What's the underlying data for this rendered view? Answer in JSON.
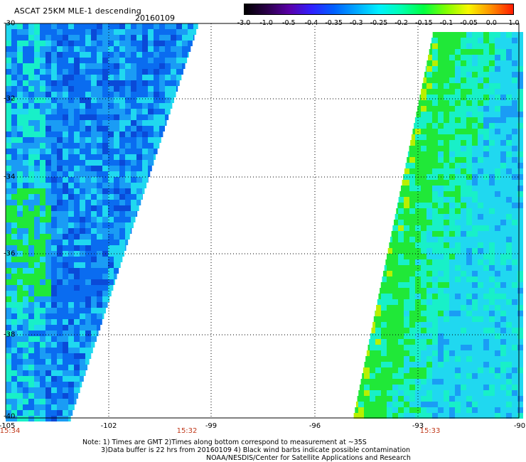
{
  "header": {
    "title": "ASCAT 25KM MLE-1 descending",
    "date": "20160109"
  },
  "colorbar": {
    "ticks": [
      "-3.0",
      "-1.0",
      "-0.5",
      "-0.4",
      "-0.35",
      "-0.3",
      "-0.25",
      "-0.2",
      "-0.15",
      "-0.1",
      "-0.05",
      "0.0",
      "1.0"
    ],
    "colors": [
      "#000000",
      "#2a0048",
      "#5a00a8",
      "#3020ff",
      "#0060ff",
      "#00a8ff",
      "#00f0ff",
      "#00ffb0",
      "#00ff40",
      "#80ff00",
      "#f8f800",
      "#ff9000",
      "#ff1a00"
    ]
  },
  "map": {
    "lat_labels": [
      "-30",
      "-32",
      "-34",
      "-36",
      "-38",
      "-40"
    ],
    "lon_labels": [
      "-105",
      "-102",
      "-99",
      "-96",
      "-93",
      "-90"
    ],
    "time_labels": [
      "15:34",
      "15:32",
      "15:33"
    ],
    "colors": {
      "blue": "#0a6cf0",
      "blue_deep": "#0a4ad8",
      "cyan_blue": "#1a9cf5",
      "cyan": "#20d8f0",
      "aqua": "#18f0c8",
      "green": "#20e838",
      "yellow_green": "#b8f000",
      "time_red": "#c0391b"
    }
  },
  "notes": {
    "line1": "Note: 1) Times are GMT 2)Times along bottom correspond to measurement at ~35S",
    "line2": "3)Data buffer is 22 hrs from 20160109 4) Black wind barbs indicate possible contamination",
    "line3": "NOAA/NESDIS/Center for Satellite Applications and Research"
  }
}
